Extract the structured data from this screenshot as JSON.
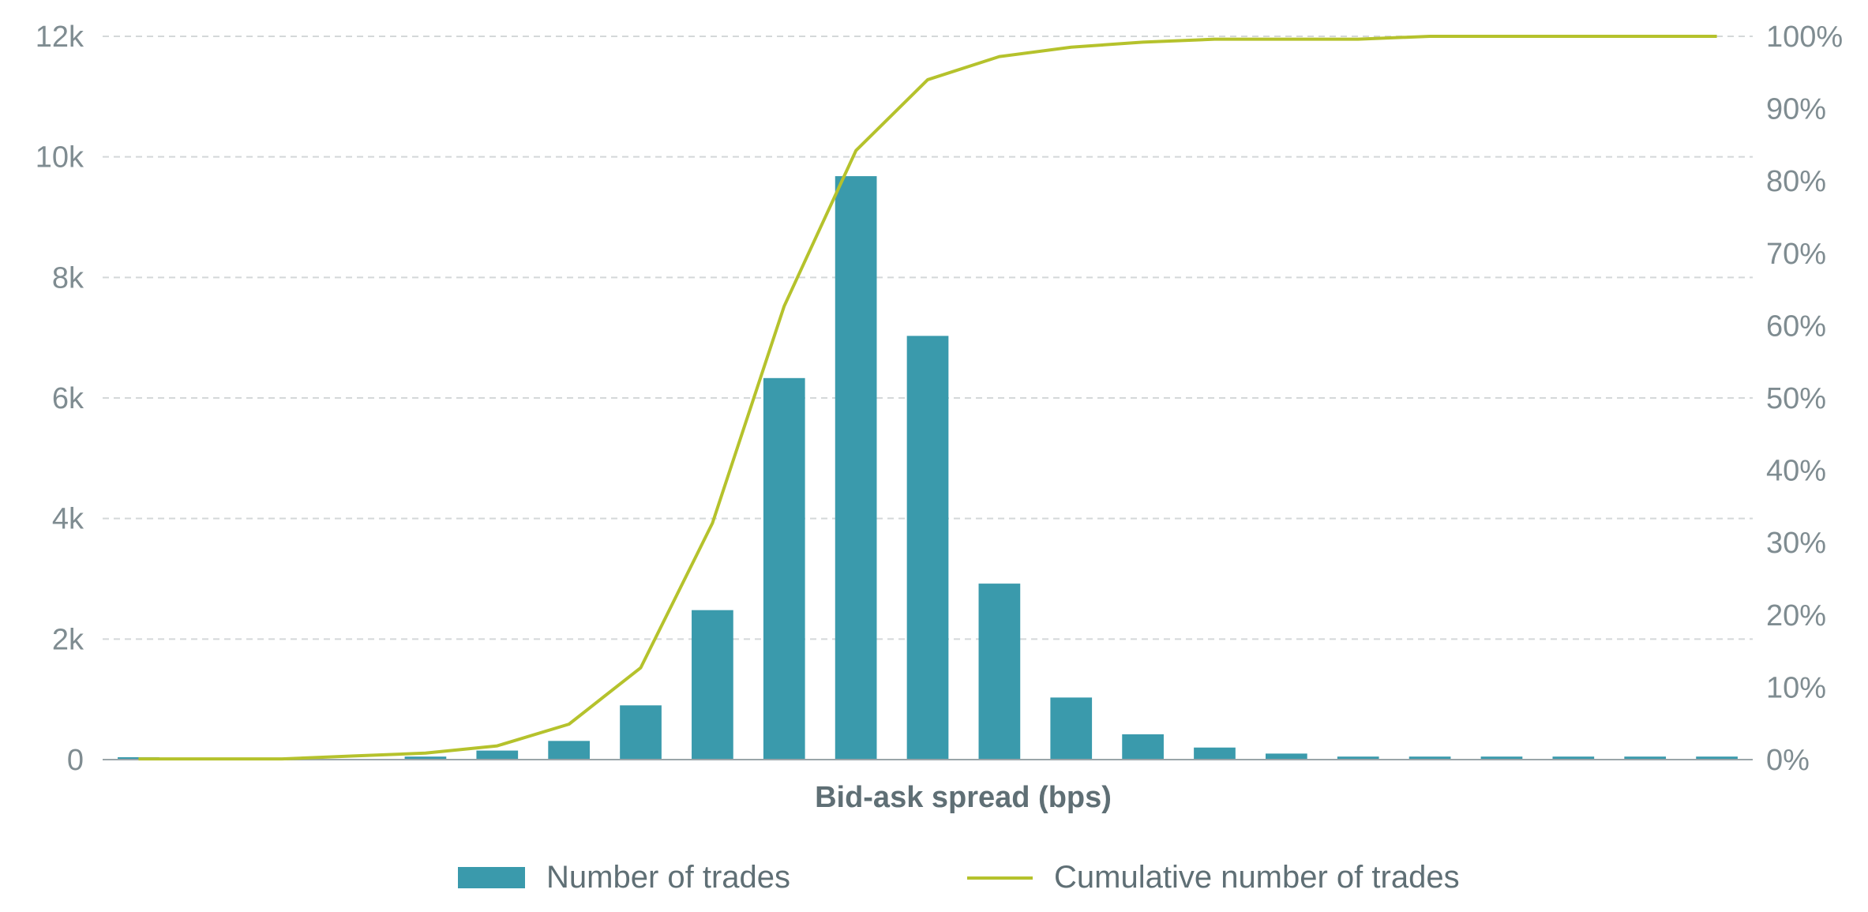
{
  "colors": {
    "bar": "#3a9aac",
    "line": "#b5c22c",
    "grid": "#d4d8d9",
    "text": "#7f8c91"
  },
  "chart_data": {
    "type": "bar",
    "title": "",
    "xlabel": "Bid-ask spread (bps)",
    "ylabel": "",
    "x_tick_labels_visible": false,
    "ylim": [
      0,
      12000
    ],
    "y_tick_labels": [
      "0",
      "2k",
      "4k",
      "6k",
      "8k",
      "10k",
      "12k"
    ],
    "y_tick_values": [
      0,
      2000,
      4000,
      6000,
      8000,
      10000,
      12000
    ],
    "y2lim": [
      0,
      100
    ],
    "y2_tick_labels": [
      "0%",
      "10%",
      "20%",
      "30%",
      "40%",
      "50%",
      "60%",
      "70%",
      "80%",
      "90%",
      "100%"
    ],
    "y2_tick_values": [
      0,
      10,
      20,
      30,
      40,
      50,
      60,
      70,
      80,
      90,
      100
    ],
    "grid": true,
    "legend_position": "bottom",
    "series": [
      {
        "name": "Number of trades",
        "type": "bar",
        "axis": "left",
        "values": [
          40,
          10,
          10,
          10,
          50,
          150,
          310,
          900,
          2480,
          6330,
          9680,
          7030,
          2920,
          1030,
          420,
          200,
          100,
          50,
          50,
          50,
          50,
          50,
          50
        ]
      },
      {
        "name": "Cumulative number of trades",
        "type": "line",
        "axis": "right",
        "x_index": [
          0.5,
          1.5,
          2.5,
          3.5,
          4.5,
          5.5,
          6.5,
          7.5,
          8.5,
          9.5,
          10.5,
          11.5,
          12.5,
          13.5,
          14.5,
          15.5,
          16.5,
          17.5,
          18.5,
          19.5,
          20.5,
          21.5,
          22.5
        ],
        "values": [
          0.1,
          0.1,
          0.1,
          0.5,
          0.9,
          1.9,
          4.9,
          12.7,
          32.7,
          62.7,
          84.2,
          94.0,
          97.2,
          98.5,
          99.2,
          99.6,
          99.6,
          99.6,
          100,
          100,
          100,
          100,
          100
        ]
      }
    ]
  },
  "legend": {
    "bar_label": "Number of trades",
    "line_label": "Cumulative number of trades"
  }
}
